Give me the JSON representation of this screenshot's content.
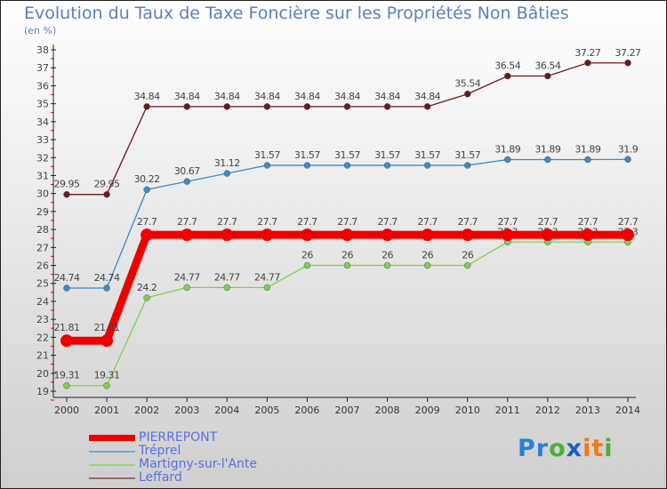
{
  "chart_data": {
    "type": "line",
    "title": "Evolution du Taux de Taxe Foncière sur les Propriétés Non Bâties",
    "ylabel": "(en %)",
    "x": [
      2000,
      2001,
      2002,
      2003,
      2004,
      2005,
      2006,
      2007,
      2008,
      2009,
      2010,
      2011,
      2012,
      2013,
      2014
    ],
    "ylim": [
      19,
      38
    ],
    "yticks": [
      19,
      20,
      21,
      22,
      23,
      24,
      25,
      26,
      27,
      28,
      29,
      30,
      31,
      32,
      33,
      34,
      35,
      36,
      37,
      38
    ],
    "legend_position": "bottom-left",
    "series": [
      {
        "name": "Leffard",
        "color": "#6b1a1a",
        "values": [
          29.95,
          29.95,
          34.84,
          34.84,
          34.84,
          34.84,
          34.84,
          34.84,
          34.84,
          34.84,
          35.54,
          36.54,
          36.54,
          37.27,
          37.27
        ]
      },
      {
        "name": "Tréprel",
        "color": "#3a8ac8",
        "values": [
          24.74,
          24.74,
          30.22,
          30.67,
          31.12,
          31.57,
          31.57,
          31.57,
          31.57,
          31.57,
          31.57,
          31.89,
          31.89,
          31.89,
          31.9
        ]
      },
      {
        "name": "Martigny-sur-l'Ante",
        "color": "#7ed04a",
        "values": [
          19.31,
          19.31,
          24.2,
          24.77,
          24.77,
          24.77,
          26,
          26,
          26,
          26,
          26,
          27.3,
          27.3,
          27.3,
          27.3
        ]
      },
      {
        "name": "PIERREPONT",
        "color": "#ee0000",
        "values": [
          21.81,
          21.81,
          27.7,
          27.7,
          27.7,
          27.7,
          27.7,
          27.7,
          27.7,
          27.7,
          27.7,
          27.7,
          27.7,
          27.7,
          27.7
        ]
      }
    ]
  },
  "legend": [
    {
      "name": "PIERREPONT",
      "color": "#ee0000"
    },
    {
      "name": "Tréprel",
      "color": "#6fa8d8"
    },
    {
      "name": "Martigny-sur-l'Ante",
      "color": "#9ad870"
    },
    {
      "name": "Leffard",
      "color": "#9a6a6a"
    }
  ],
  "logo": "Proxiti"
}
